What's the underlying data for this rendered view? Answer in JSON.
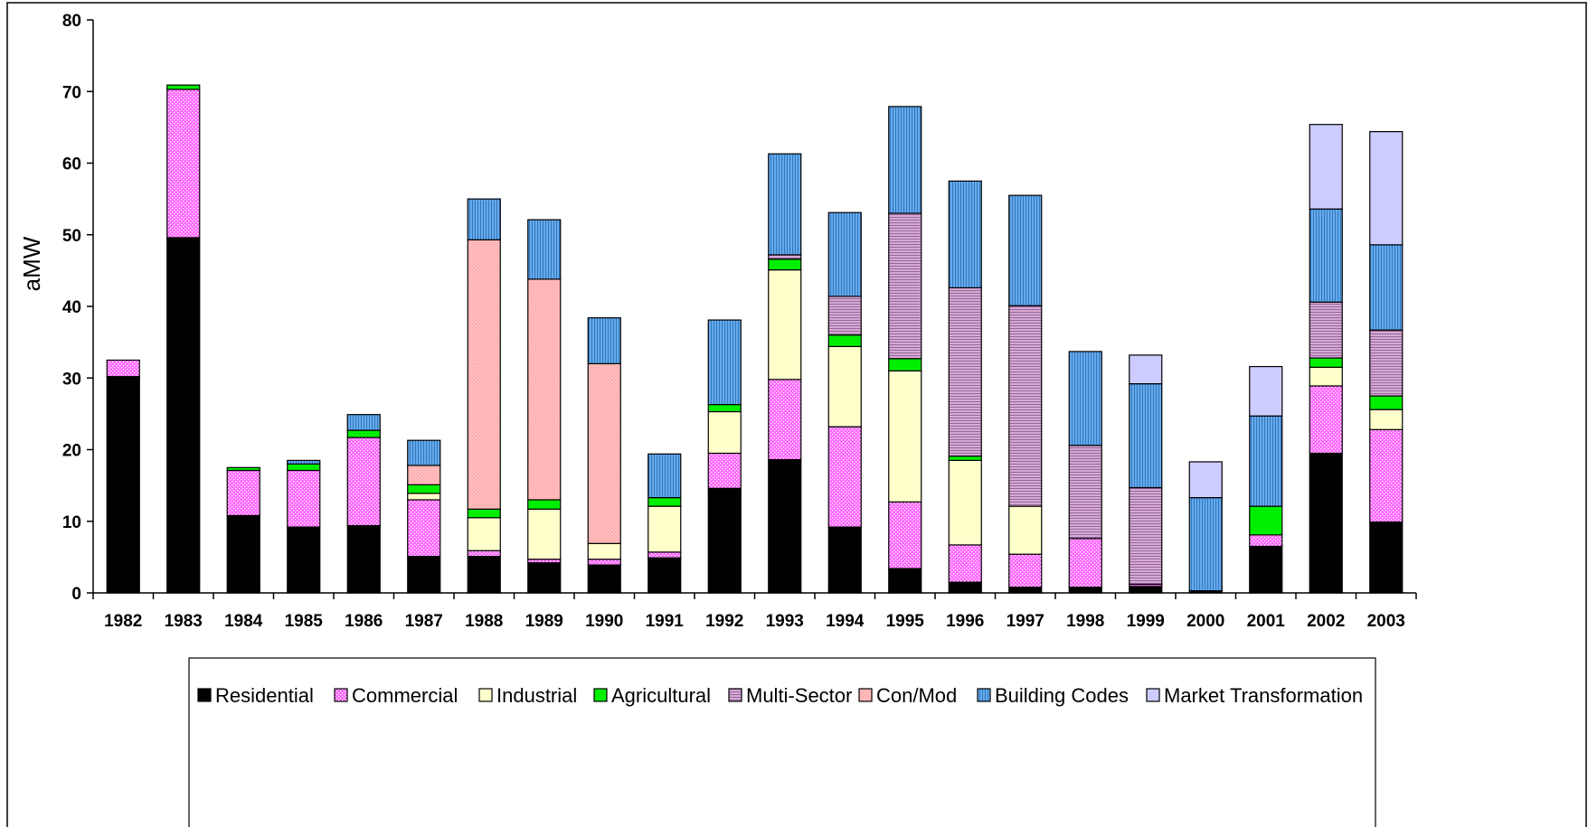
{
  "chart_data": {
    "type": "bar",
    "stacked": true,
    "ylabel": "aMW",
    "xlabel": "",
    "ylim": [
      0,
      80
    ],
    "yticks": [
      0,
      10,
      20,
      30,
      40,
      50,
      60,
      70,
      80
    ],
    "grid": false,
    "legend_position": "bottom",
    "categories": [
      "1982",
      "1983",
      "1984",
      "1985",
      "1986",
      "1987",
      "1988",
      "1989",
      "1990",
      "1991",
      "1992",
      "1993",
      "1994",
      "1995",
      "1996",
      "1997",
      "1998",
      "1999",
      "2000",
      "2001",
      "2002",
      "2003"
    ],
    "series": [
      {
        "name": "Residential",
        "color": "#000000",
        "pattern": "solid",
        "values": [
          30.2,
          49.6,
          10.8,
          9.2,
          9.4,
          5.1,
          5.1,
          4.2,
          3.9,
          4.9,
          14.6,
          18.6,
          9.2,
          3.4,
          1.5,
          0.8,
          0.8,
          0.9,
          0.3,
          6.5,
          19.5,
          9.9
        ]
      },
      {
        "name": "Commercial",
        "color": "#ff66ff",
        "pattern": "dots",
        "values": [
          2.3,
          20.7,
          6.3,
          7.9,
          12.3,
          7.9,
          0.8,
          0.5,
          0.8,
          0.8,
          4.9,
          11.2,
          14.0,
          9.3,
          5.2,
          4.6,
          6.8,
          0.3,
          0.0,
          1.6,
          9.4,
          12.9
        ]
      },
      {
        "name": "Industrial",
        "color": "#ffffcc",
        "pattern": "solid",
        "values": [
          0.0,
          0.0,
          0.0,
          0.0,
          0.0,
          0.9,
          4.6,
          7.0,
          2.2,
          6.4,
          5.8,
          15.3,
          11.2,
          18.3,
          11.8,
          6.7,
          0.0,
          0.0,
          0.0,
          0.0,
          2.6,
          2.8
        ]
      },
      {
        "name": "Agricultural",
        "color": "#00ee00",
        "pattern": "solid",
        "values": [
          0.0,
          0.6,
          0.4,
          0.9,
          1.0,
          1.2,
          1.2,
          1.3,
          0.0,
          1.2,
          1.0,
          1.5,
          1.6,
          1.7,
          0.6,
          0.0,
          0.0,
          0.0,
          0.0,
          4.0,
          1.3,
          1.9
        ]
      },
      {
        "name": "Multi-Sector",
        "color": "#cc99cc",
        "pattern": "hlines",
        "values": [
          0.0,
          0.0,
          0.0,
          0.0,
          0.0,
          0.0,
          0.0,
          0.0,
          0.0,
          0.0,
          0.0,
          0.6,
          5.4,
          20.3,
          23.5,
          28.0,
          13.0,
          13.5,
          0.0,
          0.0,
          7.8,
          9.2
        ]
      },
      {
        "name": "Con/Mod",
        "color": "#ffbbbb",
        "pattern": "dots-light",
        "values": [
          0.0,
          0.0,
          0.0,
          0.0,
          0.0,
          2.7,
          37.6,
          30.8,
          25.1,
          0.0,
          0.0,
          0.0,
          0.0,
          0.0,
          0.0,
          0.0,
          0.0,
          0.0,
          0.0,
          0.0,
          0.0,
          0.0
        ]
      },
      {
        "name": "Building Codes",
        "color": "#5599dd",
        "pattern": "vlines",
        "values": [
          0.0,
          0.0,
          0.0,
          0.5,
          2.2,
          3.5,
          5.7,
          8.3,
          6.4,
          6.1,
          11.8,
          14.1,
          11.7,
          14.9,
          14.9,
          15.4,
          13.1,
          14.5,
          13.0,
          12.6,
          13.0,
          11.9
        ]
      },
      {
        "name": "Market Transformation",
        "color": "#ccccff",
        "pattern": "solid",
        "values": [
          0.0,
          0.0,
          0.0,
          0.0,
          0.0,
          0.0,
          0.0,
          0.0,
          0.0,
          0.0,
          0.0,
          0.0,
          0.0,
          0.0,
          0.0,
          0.0,
          0.0,
          4.0,
          5.0,
          6.9,
          11.8,
          15.8
        ]
      }
    ]
  }
}
